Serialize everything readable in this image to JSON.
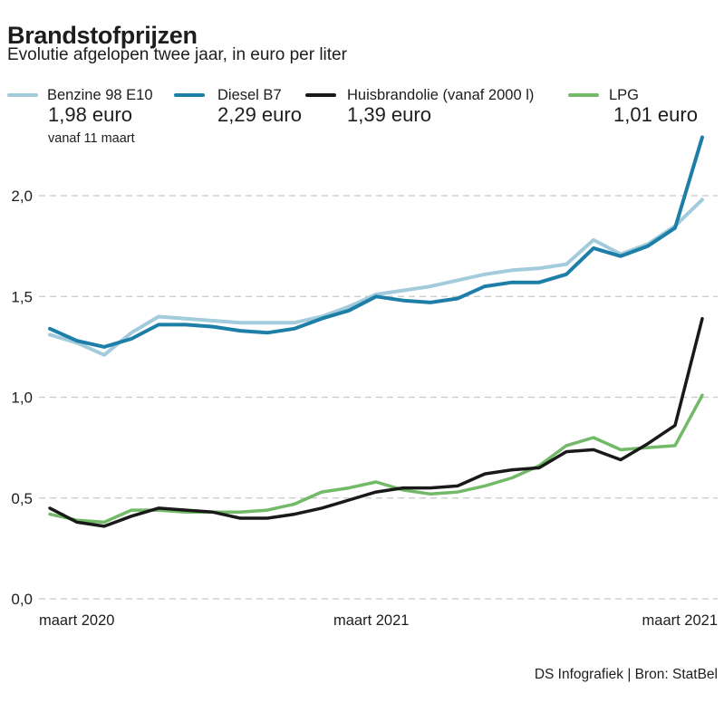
{
  "header": {
    "title": "Brandstofprijzen",
    "subtitle": "Evolutie afgelopen twee jaar, in euro per liter"
  },
  "legend": [
    {
      "label": "Benzine 98 E10",
      "value": "1,98 euro",
      "note": "vanaf 11 maart",
      "color": "#a2cbdc"
    },
    {
      "label": "Diesel B7",
      "value": "2,29 euro",
      "color": "#1d7ea8"
    },
    {
      "label": "Huisbrandolie (vanaf 2000 l)",
      "value": "1,39 euro",
      "color": "#191919"
    },
    {
      "label": "LPG",
      "value": "1,01 euro",
      "color": "#72b968"
    }
  ],
  "chart_data": {
    "type": "line",
    "title": "Brandstofprijzen",
    "subtitle": "Evolutie afgelopen twee jaar, in euro per liter",
    "unit": "euro per liter",
    "x_axis_labels": [
      "maart 2020",
      "maart 2021",
      "maart 2021"
    ],
    "y_ticks": [
      {
        "label": "0,0",
        "value": 0.0
      },
      {
        "label": "0,5",
        "value": 0.5
      },
      {
        "label": "1,0",
        "value": 1.0
      },
      {
        "label": "1,5",
        "value": 1.5
      },
      {
        "label": "2,0",
        "value": 2.0
      }
    ],
    "ylim": [
      0.0,
      2.35
    ],
    "grid": "dashed-horizontal",
    "legend_position": "top",
    "series": [
      {
        "name": "Benzine 98 E10",
        "color": "#a2cbdc",
        "width": 4,
        "z": 1,
        "end_value_label": "1,98 euro",
        "values": [
          1.31,
          1.27,
          1.21,
          1.32,
          1.4,
          1.39,
          1.38,
          1.37,
          1.37,
          1.37,
          1.4,
          1.45,
          1.51,
          1.53,
          1.55,
          1.58,
          1.61,
          1.63,
          1.64,
          1.66,
          1.78,
          1.71,
          1.76,
          1.85,
          1.98
        ]
      },
      {
        "name": "Diesel B7",
        "color": "#1d7ea8",
        "width": 4,
        "z": 2,
        "end_value_label": "2,29 euro",
        "values": [
          1.34,
          1.28,
          1.25,
          1.29,
          1.36,
          1.36,
          1.35,
          1.33,
          1.32,
          1.34,
          1.39,
          1.43,
          1.5,
          1.48,
          1.47,
          1.49,
          1.55,
          1.57,
          1.57,
          1.61,
          1.74,
          1.7,
          1.75,
          1.84,
          2.29
        ]
      },
      {
        "name": "Huisbrandolie (vanaf 2000 l)",
        "color": "#191919",
        "width": 3.5,
        "z": 4,
        "end_value_label": "1,39 euro",
        "values": [
          0.45,
          0.38,
          0.36,
          0.41,
          0.45,
          0.44,
          0.43,
          0.4,
          0.4,
          0.42,
          0.45,
          0.49,
          0.53,
          0.55,
          0.55,
          0.56,
          0.62,
          0.64,
          0.65,
          0.73,
          0.74,
          0.69,
          0.77,
          0.86,
          1.39
        ]
      },
      {
        "name": "LPG",
        "color": "#72b968",
        "width": 3.5,
        "z": 3,
        "end_value_label": "1,01 euro",
        "values": [
          0.42,
          0.39,
          0.38,
          0.44,
          0.44,
          0.43,
          0.43,
          0.43,
          0.44,
          0.47,
          0.53,
          0.55,
          0.58,
          0.54,
          0.52,
          0.53,
          0.56,
          0.6,
          0.66,
          0.76,
          0.8,
          0.74,
          0.75,
          0.76,
          1.01
        ]
      }
    ]
  },
  "footer": {
    "credit": "DS Infografiek | Bron: StatBel"
  }
}
